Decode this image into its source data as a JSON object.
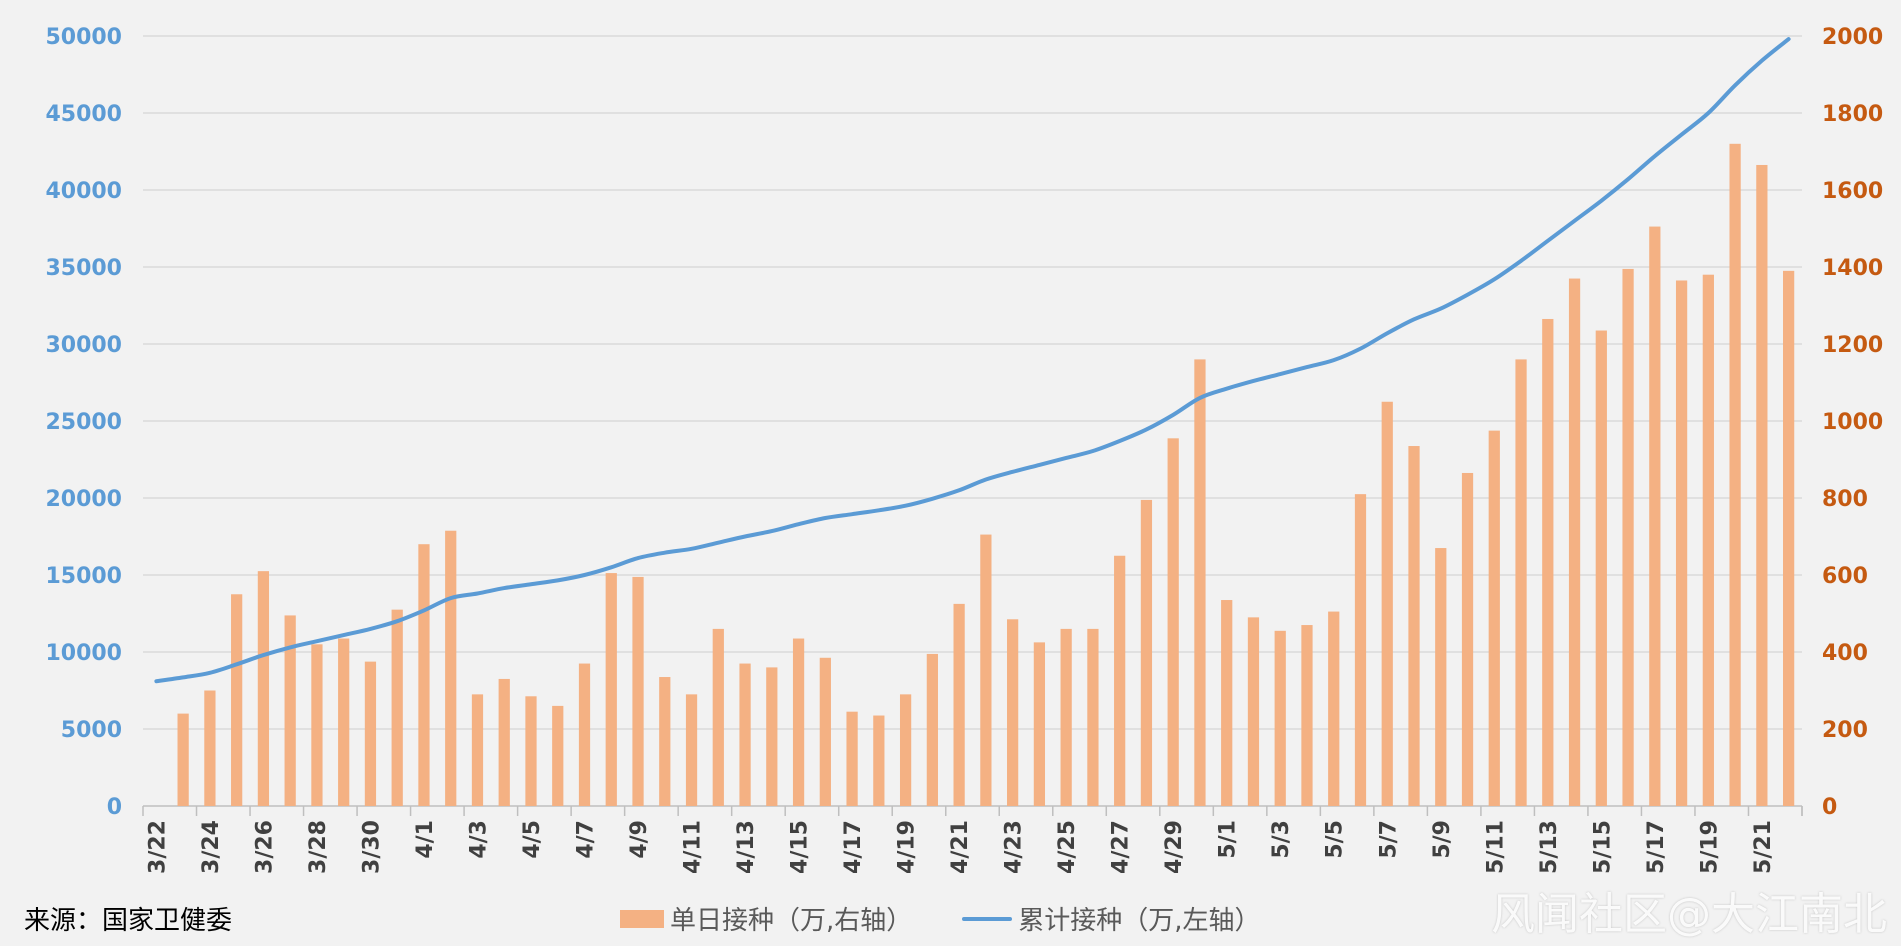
{
  "chart_data": {
    "type": "bar",
    "categories": [
      "3/22",
      "3/23",
      "3/24",
      "3/25",
      "3/26",
      "3/27",
      "3/28",
      "3/29",
      "3/30",
      "3/31",
      "4/1",
      "4/2",
      "4/3",
      "4/4",
      "4/5",
      "4/6",
      "4/7",
      "4/8",
      "4/9",
      "4/10",
      "4/11",
      "4/12",
      "4/13",
      "4/14",
      "4/15",
      "4/16",
      "4/17",
      "4/18",
      "4/19",
      "4/20",
      "4/21",
      "4/22",
      "4/23",
      "4/24",
      "4/25",
      "4/26",
      "4/27",
      "4/28",
      "4/29",
      "4/30",
      "5/1",
      "5/2",
      "5/3",
      "5/4",
      "5/5",
      "5/6",
      "5/7",
      "5/8",
      "5/9",
      "5/10",
      "5/11",
      "5/12",
      "5/13",
      "5/14",
      "5/15",
      "5/16",
      "5/17",
      "5/18",
      "5/19",
      "5/20",
      "5/21",
      "5/22"
    ],
    "x_tick_labels": [
      "3/22",
      "3/24",
      "3/26",
      "3/28",
      "3/30",
      "4/1",
      "4/3",
      "4/5",
      "4/7",
      "4/9",
      "4/11",
      "4/13",
      "4/15",
      "4/17",
      "4/19",
      "4/21",
      "4/23",
      "4/25",
      "4/27",
      "4/29",
      "5/1",
      "5/3",
      "5/5",
      "5/7",
      "5/9",
      "5/11",
      "5/13",
      "5/15",
      "5/17",
      "5/19",
      "5/21"
    ],
    "series": [
      {
        "name": "单日接种（万,右轴）",
        "type": "bar",
        "axis": "right",
        "color": "#f4b183",
        "values": [
          null,
          240,
          300,
          550,
          610,
          495,
          420,
          435,
          375,
          510,
          680,
          715,
          290,
          330,
          285,
          260,
          370,
          605,
          595,
          335,
          290,
          460,
          370,
          360,
          435,
          385,
          245,
          235,
          290,
          395,
          525,
          705,
          485,
          425,
          460,
          460,
          650,
          795,
          955,
          1160,
          535,
          490,
          455,
          470,
          505,
          810,
          1050,
          935,
          670,
          865,
          975,
          1160,
          1265,
          1370,
          1235,
          1395,
          1505,
          1365,
          1380,
          1720,
          1665,
          1390
        ]
      },
      {
        "name": "累计接种（万,左轴）",
        "type": "line",
        "axis": "left",
        "color": "#5b9bd5",
        "values": [
          8100,
          8350,
          8650,
          9200,
          9800,
          10300,
          10700,
          11100,
          11500,
          12000,
          12700,
          13500,
          13800,
          14150,
          14400,
          14650,
          15000,
          15500,
          16100,
          16450,
          16700,
          17100,
          17500,
          17850,
          18300,
          18700,
          18950,
          19200,
          19500,
          19950,
          20500,
          21200,
          21700,
          22150,
          22600,
          23050,
          23700,
          24450,
          25400,
          26500,
          27100,
          27600,
          28050,
          28500,
          28950,
          29700,
          30700,
          31600,
          32300,
          33200,
          34200,
          35400,
          36700,
          38000,
          39300,
          40700,
          42200,
          43600,
          45000,
          46800,
          48400,
          49800
        ]
      }
    ],
    "ylim_left": [
      0,
      50000
    ],
    "yticks_left": [
      "0",
      "5000",
      "10000",
      "15000",
      "20000",
      "25000",
      "30000",
      "35000",
      "40000",
      "45000",
      "50000"
    ],
    "ylim_right": [
      0,
      2000
    ],
    "yticks_right": [
      "0",
      "200",
      "400",
      "600",
      "800",
      "1000",
      "1200",
      "1400",
      "1600",
      "1800",
      "2000"
    ],
    "grid": true,
    "legend_position": "bottom"
  },
  "source_note": "来源：国家卫健委",
  "legend": {
    "bar_label": "单日接种（万,右轴）",
    "line_label": "累计接种（万,左轴）"
  },
  "watermark": "风闻社区@大江南北"
}
